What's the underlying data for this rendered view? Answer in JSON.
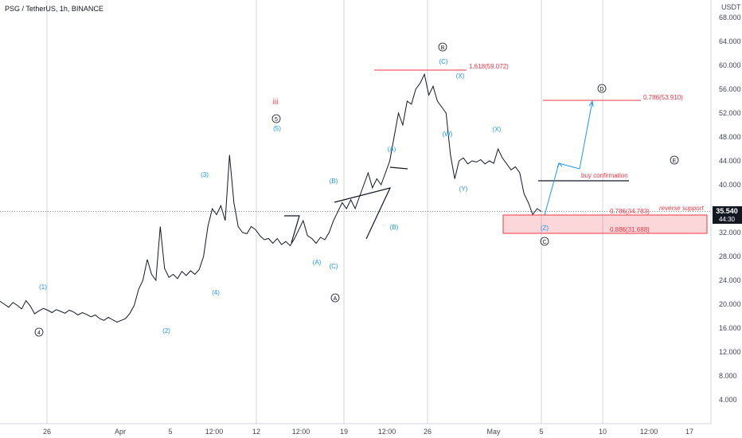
{
  "header": {
    "title": "PSG / TetherUS, 1h, BINANCE"
  },
  "currency": "USDT",
  "price_tag": {
    "price": "35.540",
    "countdown": "44:30"
  },
  "chart_data": {
    "type": "line",
    "title": "PSG / TetherUS, 1h, BINANCE",
    "y_ticks": [
      "68.000",
      "64.000",
      "60.000",
      "56.000",
      "52.000",
      "48.000",
      "44.000",
      "40.000",
      "32.000",
      "28.000",
      "24.000",
      "20.000",
      "16.000",
      "12.000",
      "8.000",
      "4.000"
    ],
    "ylim": [
      0,
      70
    ],
    "x_ticks": [
      "26",
      "Apr",
      "5",
      "12:00",
      "12",
      "12:00",
      "19",
      "12:00",
      "26",
      "May",
      "5",
      "10",
      "12:00",
      "17"
    ],
    "series": [
      {
        "values": [
          20.5,
          20.0,
          19.5,
          20.3,
          19.8,
          19.2,
          20.6,
          19.7,
          18.4,
          18.9,
          19.3,
          19.0,
          18.6,
          19.1,
          18.8,
          18.5,
          19.0,
          18.7,
          18.2,
          18.6,
          18.3,
          17.9,
          18.2,
          17.6,
          17.3,
          17.8,
          17.4,
          17.0,
          17.3,
          17.6,
          18.5,
          19.8,
          22.5,
          24.0,
          27.5,
          25.0,
          24.0,
          33.0,
          26.0,
          24.5,
          25.0,
          24.3,
          25.5,
          24.8,
          25.6,
          25.0,
          25.8,
          28.0,
          33.0,
          36.0,
          35.0,
          36.5,
          34.0,
          45.0,
          37.0,
          33.0,
          32.0,
          31.8,
          33.0,
          32.5,
          31.5,
          30.8,
          31.0,
          30.2,
          31.0,
          30.0,
          30.5,
          29.8,
          31.0,
          32.5,
          34.0,
          31.5,
          31.0,
          30.2,
          31.2,
          30.8,
          32.0,
          34.0,
          35.5,
          37.0,
          36.0,
          37.5,
          36.0,
          38.0,
          40.0,
          42.0,
          39.5,
          41.0,
          40.0,
          42.0,
          44.0,
          48.0,
          52.0,
          50.0,
          54.0,
          53.5,
          56.0,
          57.0,
          58.5,
          55.0,
          56.5,
          54.0,
          53.0,
          52.0,
          45.0,
          41.0,
          44.0,
          44.5,
          43.5,
          44.0,
          43.8,
          44.2,
          43.5,
          44.0,
          43.6,
          46.0,
          44.5,
          43.5,
          42.5,
          43.0,
          42.0,
          38.5,
          37.0,
          35.0,
          36.0,
          35.54
        ]
      }
    ],
    "annotations": {
      "wave_circled": [
        "4",
        "A",
        "5",
        "B",
        "C",
        "D",
        "E"
      ],
      "wave_blue": [
        "(1)",
        "(2)",
        "(3)",
        "(4)",
        "(5)",
        "(A)",
        "(B)",
        "(C)",
        "(A)",
        "(B)",
        "(C)",
        "(W)",
        "(X)",
        "(Y)",
        "(X)",
        "(Z)"
      ],
      "roman": "iii",
      "fib_1618": "1.618(59.072)",
      "fib_0786_top": "0.786(53.910)",
      "fib_0786_bottom": "0.786(34.783)",
      "fib_0886": "0.886(31.688)",
      "buy_confirmation": "buy confirmation",
      "reverse_support": "reverse support"
    }
  }
}
